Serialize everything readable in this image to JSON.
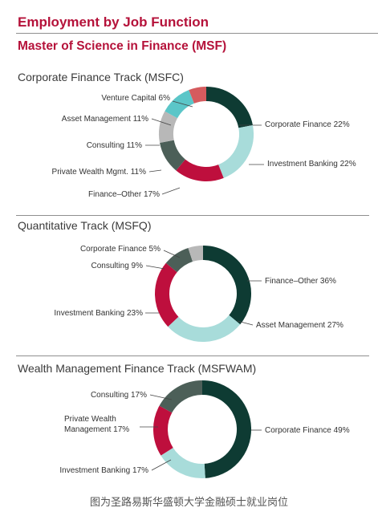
{
  "header": {
    "title": "Employment by Job Function",
    "subtitle": "Master of Science in Finance (MSF)"
  },
  "colors": {
    "title": "#b5123a",
    "dark_green": "#0e3b33",
    "light_teal": "#a8dcda",
    "crimson": "#be0f3d",
    "slate_green": "#4c5f58",
    "gray": "#b8b8b8",
    "teal": "#5bc6c8",
    "coral": "#d55b5e"
  },
  "chart_data": [
    {
      "type": "pie",
      "title": "Corporate Finance Track (MSFC)",
      "slices": [
        {
          "label": "Corporate Finance 22%",
          "value": 22,
          "color": "#0e3b33"
        },
        {
          "label": "Investment Banking 22%",
          "value": 22,
          "color": "#a8dcda"
        },
        {
          "label": "Finance–Other 17%",
          "value": 17,
          "color": "#be0f3d"
        },
        {
          "label": "Private Wealth Mgmt. 11%",
          "value": 11,
          "color": "#4c5f58"
        },
        {
          "label": "Consulting 11%",
          "value": 11,
          "color": "#b8b8b8"
        },
        {
          "label": "Asset Management 11%",
          "value": 11,
          "color": "#5bc6c8"
        },
        {
          "label": "Venture Capital 6%",
          "value": 6,
          "color": "#d55b5e"
        }
      ]
    },
    {
      "type": "pie",
      "title": "Quantitative Track (MSFQ)",
      "slices": [
        {
          "label": "Finance–Other 36%",
          "value": 36,
          "color": "#0e3b33"
        },
        {
          "label": "Asset Management 27%",
          "value": 27,
          "color": "#a8dcda"
        },
        {
          "label": "Investment Banking 23%",
          "value": 23,
          "color": "#be0f3d"
        },
        {
          "label": "Consulting 9%",
          "value": 9,
          "color": "#4c5f58"
        },
        {
          "label": "Corporate Finance 5%",
          "value": 5,
          "color": "#b8b8b8"
        }
      ]
    },
    {
      "type": "pie",
      "title": "Wealth Management Finance Track (MSFWAM)",
      "slices": [
        {
          "label": "Corporate Finance 49%",
          "value": 49,
          "color": "#0e3b33"
        },
        {
          "label": "Investment Banking 17%",
          "value": 17,
          "color": "#a8dcda"
        },
        {
          "label": "Private Wealth\nManagement 17%",
          "value": 17,
          "color": "#be0f3d"
        },
        {
          "label": "Consulting 17%",
          "value": 17,
          "color": "#4c5f58"
        }
      ]
    }
  ],
  "footer": {
    "caption": "图为圣路易斯华盛顿大学金融硕士就业岗位"
  }
}
